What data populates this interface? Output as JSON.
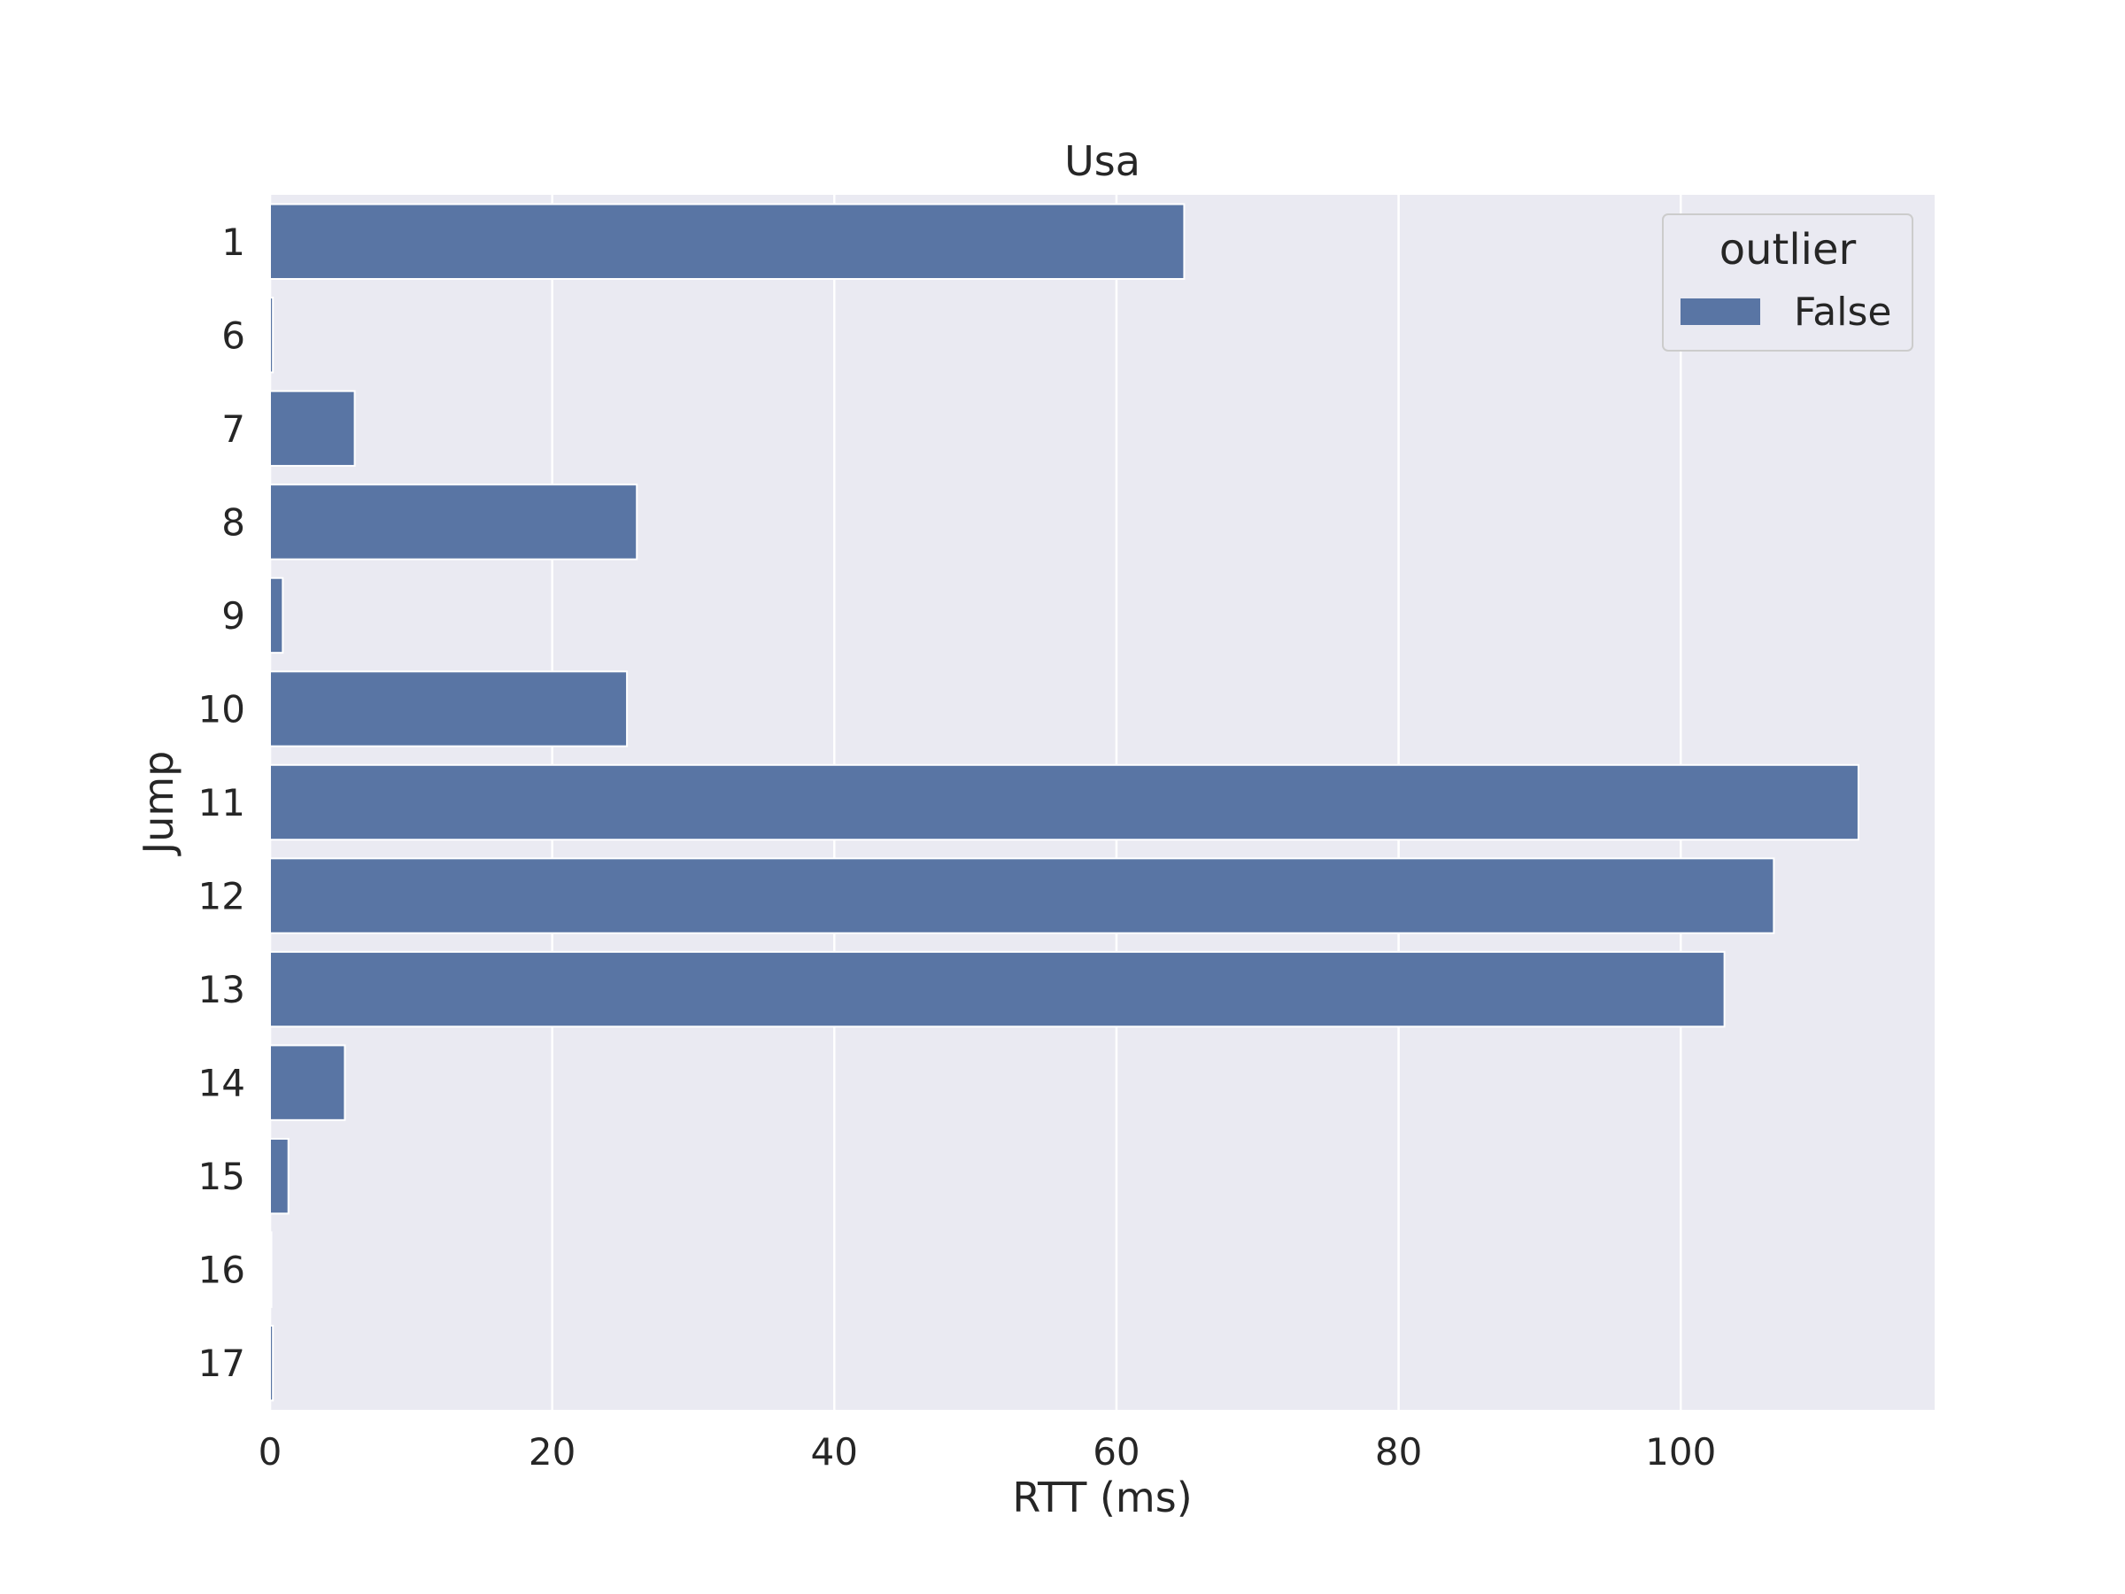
{
  "chart_data": {
    "type": "bar",
    "orientation": "horizontal",
    "title": "Usa",
    "xlabel": "RTT (ms)",
    "ylabel": "Jump",
    "categories": [
      "1",
      "6",
      "7",
      "8",
      "9",
      "10",
      "11",
      "12",
      "13",
      "14",
      "15",
      "16",
      "17"
    ],
    "series": [
      {
        "name": "False",
        "values": [
          64.8,
          0.2,
          6.0,
          26.0,
          0.9,
          25.3,
          112.6,
          106.6,
          103.1,
          5.3,
          1.3,
          0.1,
          0.2
        ]
      }
    ],
    "xlim": [
      0,
      118
    ],
    "xticks": [
      "0",
      "20",
      "40",
      "60",
      "80",
      "100"
    ],
    "xtick_values": [
      0,
      20,
      40,
      60,
      80,
      100
    ],
    "grid": true,
    "legend": {
      "title": "outlier",
      "placement": "top-right"
    },
    "colors": {
      "bar": "#5975a4",
      "plot_background": "#eaeaf2",
      "grid": "#ffffff"
    }
  }
}
